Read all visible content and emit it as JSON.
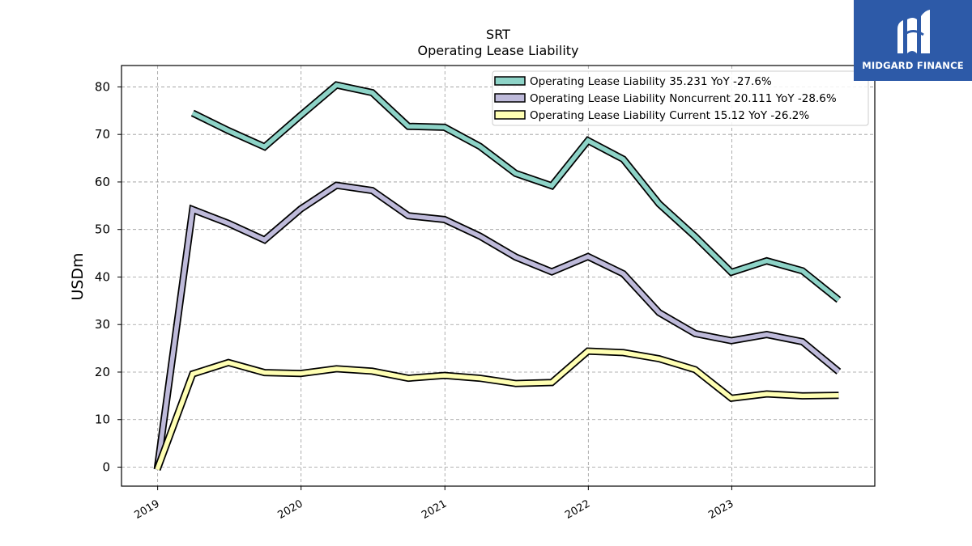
{
  "brand": {
    "name": "MIDGARD FINANCE",
    "icon": "midgard-finance-logo-icon",
    "background": "#2d5aa8"
  },
  "chart_data": {
    "type": "line",
    "title": "SRT",
    "subtitle": "Operating Lease Liability",
    "ylabel": "USDm",
    "xlabel": "",
    "ylim": [
      -4,
      84.5
    ],
    "xlim": [
      "2018-10-01",
      "2023-12-31"
    ],
    "yticks": [
      0,
      10,
      20,
      30,
      40,
      50,
      60,
      70,
      80
    ],
    "xticks": [
      "2019",
      "2020",
      "2021",
      "2022",
      "2023"
    ],
    "xtick_dates": [
      "2019-01-01",
      "2020-01-01",
      "2021-01-01",
      "2022-01-01",
      "2023-01-01"
    ],
    "grid": true,
    "legend_position": "top-right",
    "series": [
      {
        "name": "Operating Lease Liability  35.231 YoY -27.6%",
        "color": "#8dd3c7",
        "x": [
          "2019-03-31",
          "2019-06-30",
          "2019-09-30",
          "2019-12-31",
          "2020-03-31",
          "2020-06-30",
          "2020-09-30",
          "2020-12-31",
          "2021-03-31",
          "2021-06-30",
          "2021-09-30",
          "2021-12-31",
          "2022-03-31",
          "2022-06-30",
          "2022-09-30",
          "2022-12-31",
          "2023-03-31",
          "2023-06-30",
          "2023-09-30"
        ],
        "values": [
          74.5,
          70.8,
          67.4,
          74.0,
          80.4,
          78.8,
          71.7,
          71.5,
          67.5,
          61.8,
          59.2,
          68.7,
          64.8,
          55.4,
          48.5,
          41.0,
          43.4,
          41.3,
          35.2
        ]
      },
      {
        "name": "Operating Lease Liability Noncurrent  20.111 YoY -28.6%",
        "color": "#bebada",
        "x": [
          "2018-12-31",
          "2019-03-31",
          "2019-06-30",
          "2019-09-30",
          "2019-12-31",
          "2020-03-31",
          "2020-06-30",
          "2020-09-30",
          "2020-12-31",
          "2021-03-31",
          "2021-06-30",
          "2021-09-30",
          "2021-12-31",
          "2022-03-31",
          "2022-06-30",
          "2022-09-30",
          "2022-12-31",
          "2023-03-31",
          "2023-06-30",
          "2023-09-30"
        ],
        "values": [
          -0.5,
          54.2,
          51.3,
          47.8,
          54.3,
          59.3,
          58.2,
          52.9,
          52.1,
          48.6,
          44.2,
          41.1,
          44.3,
          40.7,
          32.5,
          28.1,
          26.6,
          27.9,
          26.4,
          20.1
        ]
      },
      {
        "name": "Operating Lease Liability Current  15.12 YoY -26.2%",
        "color": "#ffffb3",
        "x": [
          "2018-12-31",
          "2019-03-31",
          "2019-06-30",
          "2019-09-30",
          "2019-12-31",
          "2020-03-31",
          "2020-06-30",
          "2020-09-30",
          "2020-12-31",
          "2021-03-31",
          "2021-06-30",
          "2021-09-30",
          "2021-12-31",
          "2022-03-31",
          "2022-06-30",
          "2022-09-30",
          "2022-12-31",
          "2023-03-31",
          "2023-06-30",
          "2023-09-30"
        ],
        "values": [
          -0.5,
          19.6,
          22.0,
          19.9,
          19.7,
          20.7,
          20.2,
          18.7,
          19.3,
          18.7,
          17.6,
          17.8,
          24.4,
          24.1,
          22.8,
          20.5,
          14.5,
          15.4,
          15.0,
          15.1
        ]
      }
    ]
  }
}
